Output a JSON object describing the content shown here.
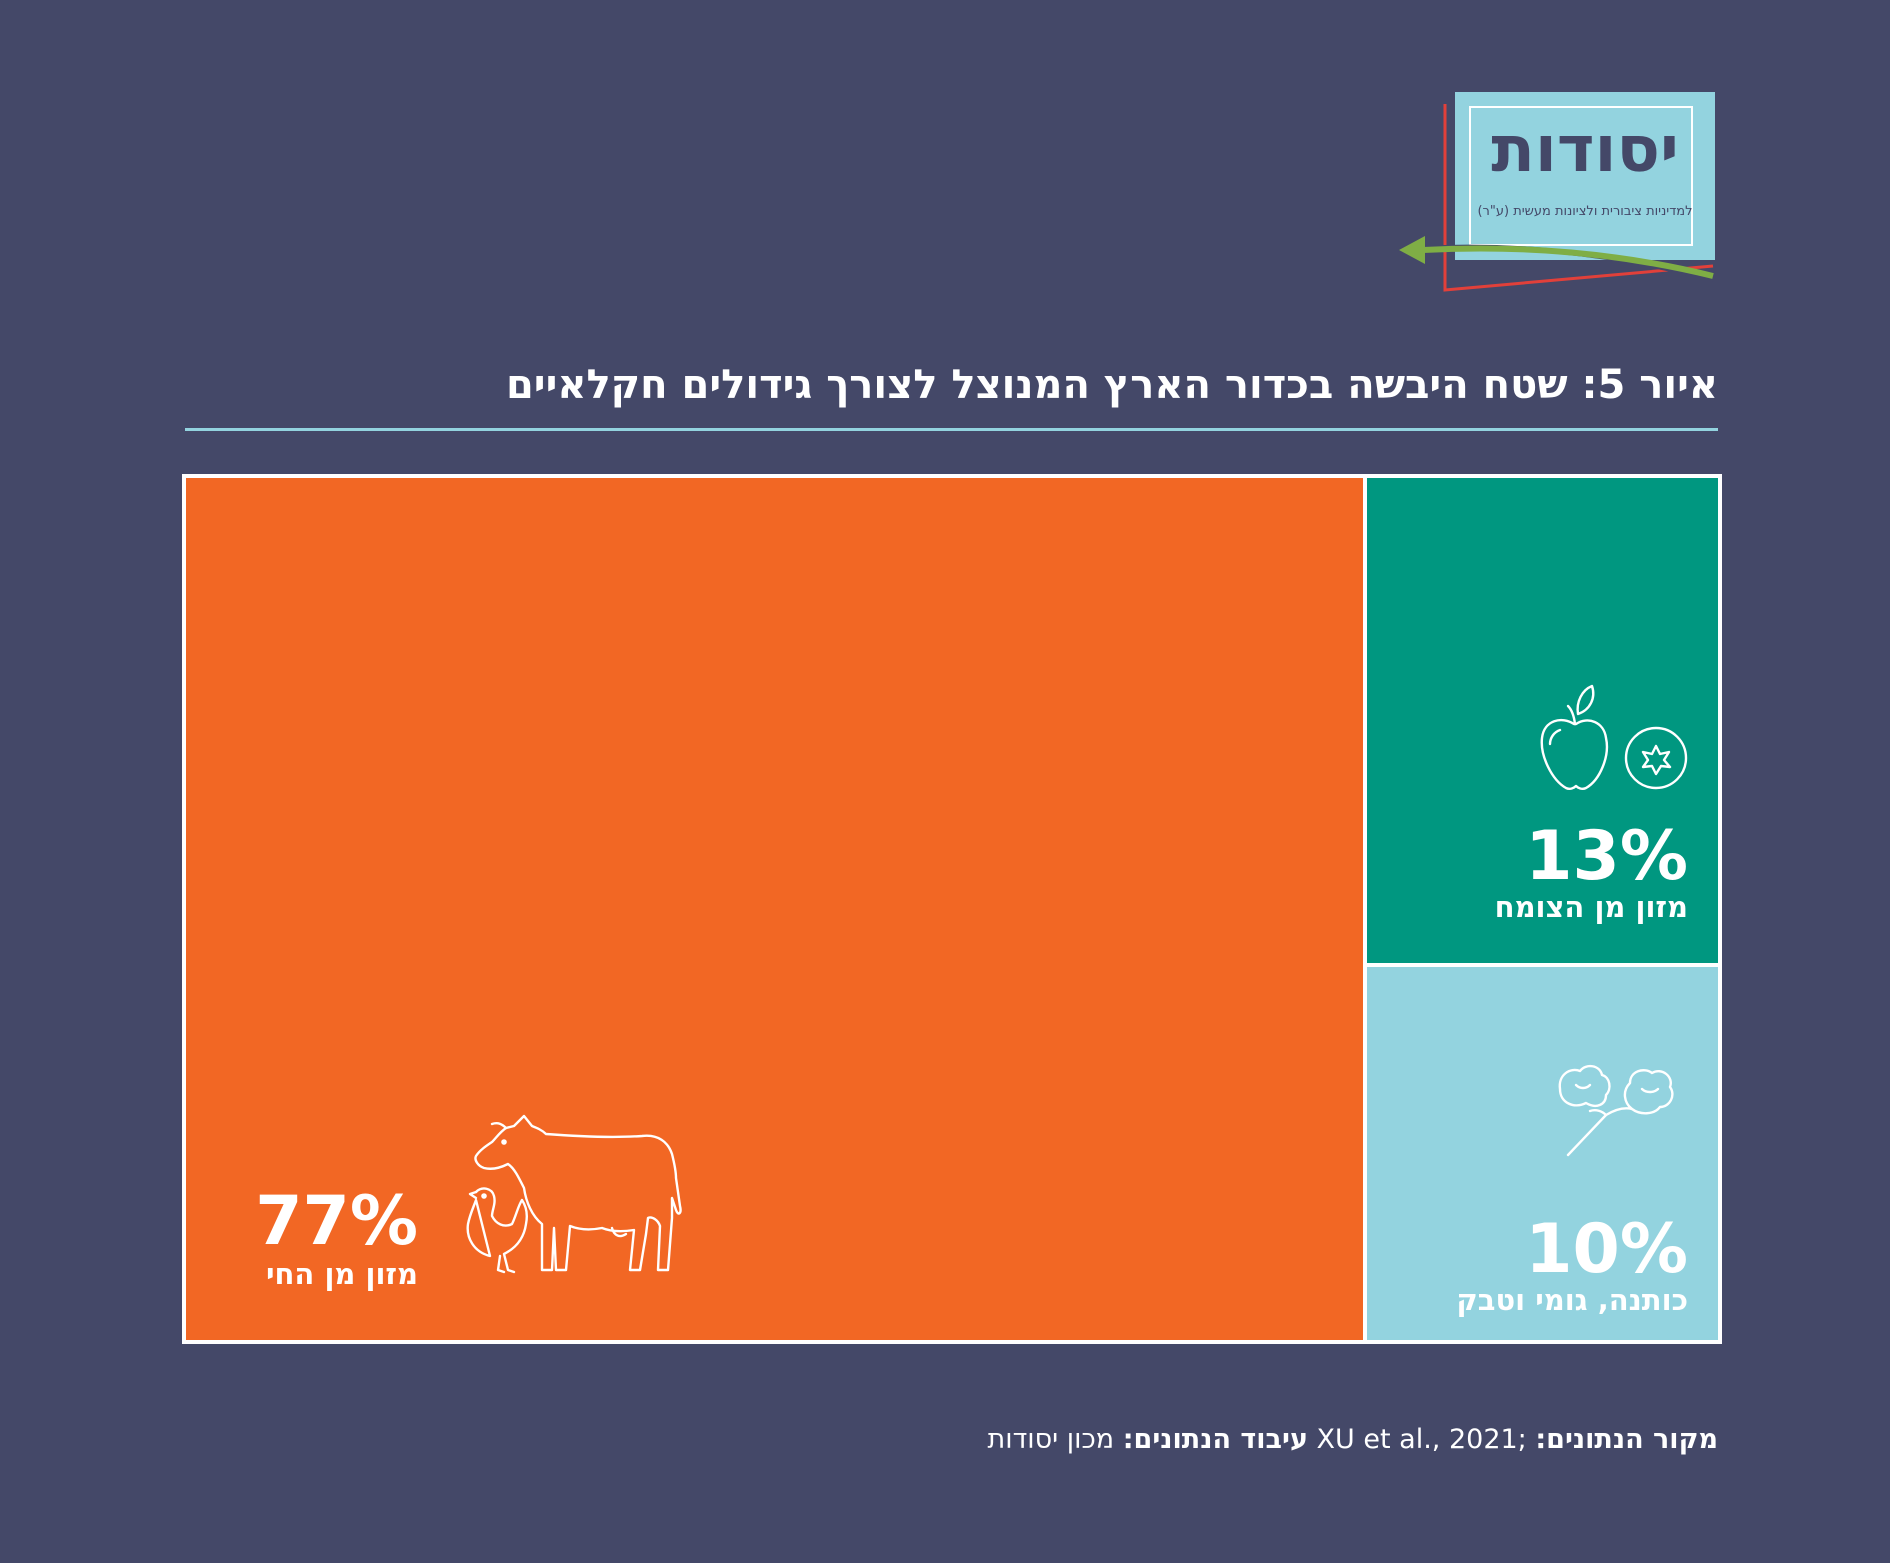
{
  "logo": {
    "title": "יסודות",
    "subtitle": "למדיניות ציבורית ולציונות מעשית (ע\"ר)"
  },
  "title": "איור 5: שטח היבשה בכדור הארץ המנוצל לצורך גידולים חקלאיים",
  "source": {
    "label_source": "מקור הנתונים:",
    "source_value": "XU et al., 2021;",
    "label_processing": "עיבוד הנתונים:",
    "processing_value": "מכון יסודות"
  },
  "colors": {
    "background": "#444868",
    "animal": "#f26724",
    "plant": "#009780",
    "other": "#93d3df"
  },
  "chart_data": {
    "type": "treemap",
    "title": "איור 5: שטח היבשה בכדור הארץ המנוצל לצורך גידולים חקלאיים",
    "unit": "%",
    "items": [
      {
        "key": "animal",
        "label": "מזון מן החי",
        "value": 77,
        "display": "77%",
        "color": "#f26724",
        "icon": "cow-chicken-icon"
      },
      {
        "key": "plant",
        "label": "מזון מן הצומח",
        "value": 13,
        "display": "13%",
        "color": "#009780",
        "icon": "apple-tomato-icon"
      },
      {
        "key": "other",
        "label": "כותנה, גומי וטבק",
        "value": 10,
        "display": "10%",
        "color": "#93d3df",
        "icon": "cotton-icon"
      }
    ]
  }
}
